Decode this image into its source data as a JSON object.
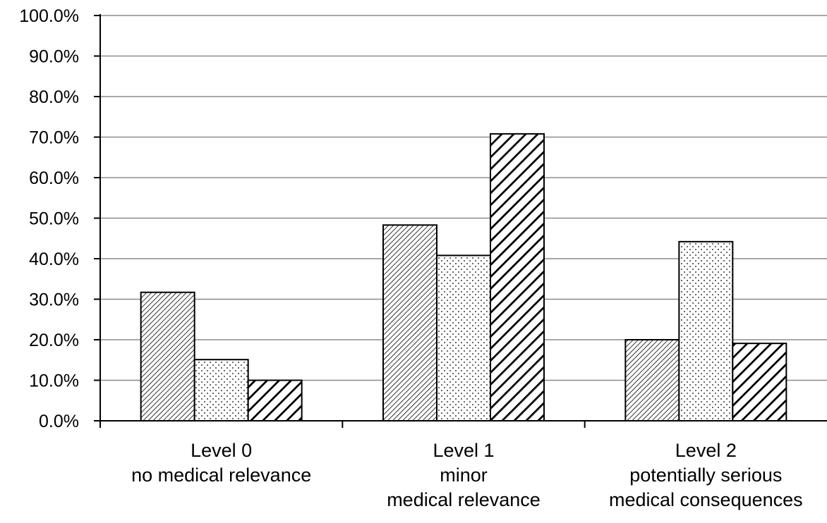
{
  "chart_data": {
    "type": "bar",
    "categories": [
      [
        "Level 0",
        "no medical relevance"
      ],
      [
        "Level 1",
        "minor",
        "medical relevance"
      ],
      [
        "Level 2",
        "potentially serious",
        "medical consequences"
      ]
    ],
    "series": [
      {
        "values": [
          31.7,
          48.3,
          20.0
        ],
        "pattern": "diag-fine"
      },
      {
        "values": [
          15.1,
          40.8,
          44.2
        ],
        "pattern": "dots"
      },
      {
        "values": [
          10.0,
          70.8,
          19.1
        ],
        "pattern": "diag-bold"
      }
    ],
    "ylim": [
      0,
      100
    ],
    "yticks": [
      "0.0%",
      "10.0%",
      "20.0%",
      "30.0%",
      "40.0%",
      "50.0%",
      "60.0%",
      "70.0%",
      "80.0%",
      "90.0%",
      "100.0%"
    ],
    "grid": true,
    "colors": {
      "bar_fill": "#ffffff",
      "bar_stroke": "#000000",
      "grid": "#8c8c8c",
      "axis": "#000000"
    }
  }
}
